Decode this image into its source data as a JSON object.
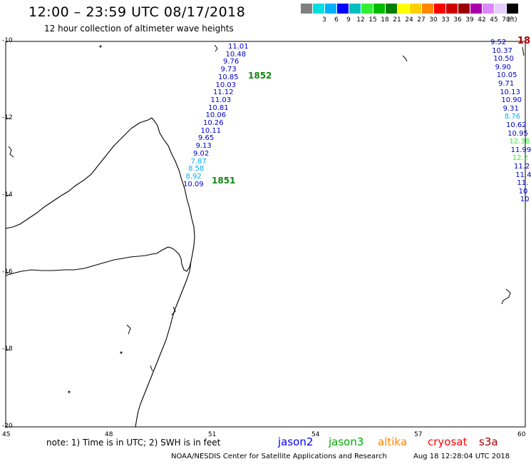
{
  "header": {
    "title": "12:00 – 23:59 UTC 08/17/2018",
    "subtitle": "12 hour collection of altimeter wave heights"
  },
  "legend": {
    "unit": "(ft)",
    "bins": [
      {
        "label": "",
        "color": "#808080"
      },
      {
        "label": "3",
        "color": "#00e0e0"
      },
      {
        "label": "6",
        "color": "#00b0ff"
      },
      {
        "label": "9",
        "color": "#0000ff"
      },
      {
        "label": "12",
        "color": "#00bfbf"
      },
      {
        "label": "15",
        "color": "#33ee33"
      },
      {
        "label": "18",
        "color": "#00bb00"
      },
      {
        "label": "21",
        "color": "#007f00"
      },
      {
        "label": "24",
        "color": "#ffff00"
      },
      {
        "label": "27",
        "color": "#ffd000"
      },
      {
        "label": "30",
        "color": "#ff8800"
      },
      {
        "label": "33",
        "color": "#ff0000"
      },
      {
        "label": "36",
        "color": "#d00000"
      },
      {
        "label": "39",
        "color": "#990000"
      },
      {
        "label": "42",
        "color": "#aa00aa"
      },
      {
        "label": "45",
        "color": "#dd88ff"
      },
      {
        "label": "70",
        "color": "#e6ccff"
      },
      {
        "label": "",
        "color": "#000000"
      }
    ]
  },
  "axes": {
    "lat_labels": [
      "-10",
      "-12",
      "-14",
      "-16",
      "-18",
      "-20"
    ],
    "lon_labels": [
      "45",
      "48",
      "51",
      "54",
      "57",
      "60"
    ]
  },
  "tracks": {
    "left_values": [
      "11.01",
      "10.48",
      "9.76",
      "9.73",
      "10.85",
      "10.03",
      "11.12",
      "11.03",
      "10.81",
      "10.06",
      "10.26",
      "10.11",
      "9.65",
      "9.13",
      "9.02",
      "7.87",
      "8.58",
      "8.92",
      "10.09"
    ],
    "left_colors": [
      "#0000c8",
      "#0000c8",
      "#0000c8",
      "#0000c8",
      "#0000c8",
      "#0000c8",
      "#0000c8",
      "#0000c8",
      "#0000c8",
      "#0000c8",
      "#0000c8",
      "#0000c8",
      "#0000c8",
      "#0000c8",
      "#0000c8",
      "#00b0ff",
      "#00b0ff",
      "#00b0ff",
      "#0000c8"
    ],
    "pass_labels": [
      "1852",
      "1851"
    ],
    "right_values": [
      "9.52",
      "10.37",
      "10.50",
      "9.90",
      "10.05",
      "9.71",
      "10.13",
      "10.90",
      "9.31",
      "8.76",
      "10.62",
      "10.95",
      "12.38",
      "11.99",
      "12.2",
      "11.2",
      "11.4",
      "11.",
      "10",
      "10"
    ],
    "right_colors": [
      "#0000c8",
      "#0000c8",
      "#0000c8",
      "#0000c8",
      "#0000c8",
      "#0000c8",
      "#0000c8",
      "#0000c8",
      "#0000c8",
      "#00b0ff",
      "#0000c8",
      "#0000c8",
      "#33ee33",
      "#0000c8",
      "#33ee33",
      "#0000c8",
      "#0000c8",
      "#0000c8",
      "#0000c8",
      "#0000c8"
    ],
    "right_edge_label": "18"
  },
  "footer": {
    "note": "note:  1) Time is in UTC;  2) SWH is in feet",
    "satellites": [
      {
        "name": "jason2",
        "color": "#0000ff"
      },
      {
        "name": "jason3",
        "color": "#00aa00"
      },
      {
        "name": "altika",
        "color": "#ff8800"
      },
      {
        "name": "cryosat",
        "color": "#ff0000"
      },
      {
        "name": "s3a",
        "color": "#aa0000"
      }
    ],
    "credit": "NOAA/NESDIS Center for Satellite Applications and Research",
    "timestamp": "Aug 18 12:28:04 UTC 2018"
  }
}
